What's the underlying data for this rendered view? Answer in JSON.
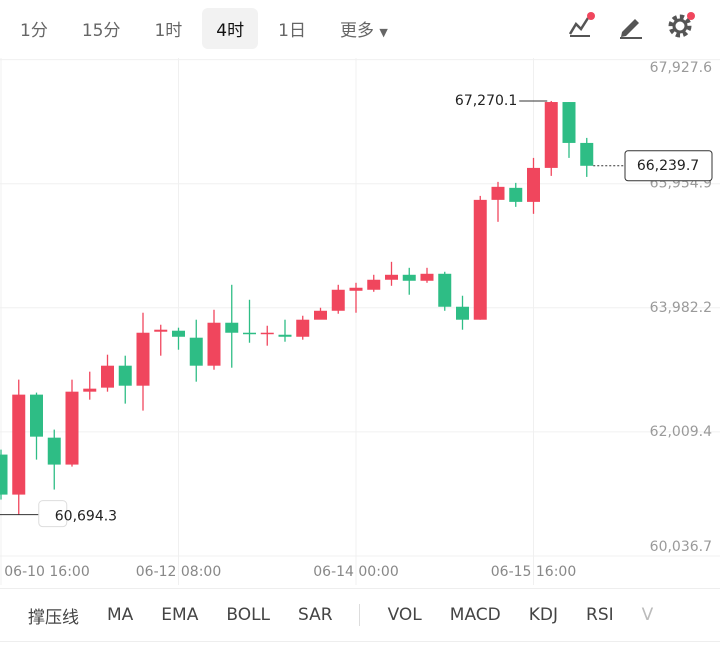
{
  "tabs": [
    "1分",
    "15分",
    "1时",
    "4时",
    "1日",
    "更多"
  ],
  "indicators": [
    "撑压线",
    "MA",
    "EMA",
    "BOLL",
    "SAR",
    "VOL",
    "MACD",
    "KDJ",
    "RSI",
    "V"
  ],
  "chart_data": {
    "type": "candlestick",
    "categories": [
      "06-10 16:00",
      null,
      null,
      null,
      null,
      null,
      null,
      null,
      null,
      null,
      "06-12 08:00",
      null,
      null,
      null,
      null,
      null,
      null,
      null,
      null,
      null,
      "06-14 00:00",
      null,
      null,
      null,
      null,
      null,
      null,
      null,
      null,
      null,
      "06-15 16:00",
      null,
      null,
      null
    ],
    "open": [
      61649,
      61013,
      62602,
      61918,
      61490,
      62649,
      62713,
      63062,
      62744,
      63602,
      63618,
      63507,
      63062,
      63745,
      63586,
      63570,
      63554,
      63522,
      63793,
      63935,
      64253,
      64269,
      64428,
      64507,
      64412,
      64523,
      63999,
      63793,
      65698,
      65889,
      65666,
      66206,
      67253,
      66603
    ],
    "high": [
      61728,
      62840,
      62634,
      62046,
      62840,
      62967,
      63237,
      63221,
      63904,
      63713,
      63666,
      63793,
      63951,
      64348,
      64110,
      63697,
      63793,
      63856,
      63983,
      64348,
      64380,
      64507,
      64713,
      64618,
      64618,
      64555,
      64174,
      65761,
      65984,
      65968,
      66365,
      67270.1,
      67253,
      66683
    ],
    "low": [
      60934,
      60694.3,
      61569,
      61093,
      61458,
      62522,
      62649,
      62459,
      62348,
      63221,
      63316,
      62808,
      62998,
      63030,
      63427,
      63380,
      63443,
      63475,
      63824,
      63888,
      63904,
      64237,
      64332,
      64190,
      64380,
      63935,
      63634,
      63793,
      65349,
      65587,
      65476,
      66079,
      66365,
      66063
    ],
    "close": [
      61013,
      62602,
      61934,
      61490,
      62649,
      62697,
      63062,
      62744,
      63586,
      63634,
      63522,
      63062,
      63745,
      63586,
      63570,
      63586,
      63522,
      63793,
      63935,
      64269,
      64301,
      64428,
      64507,
      64412,
      64523,
      63999,
      63793,
      65698,
      65905,
      65666,
      66206,
      67253,
      66603,
      66239.7
    ],
    "up_color": "#f0465d",
    "down_color": "#2ebd85",
    "ylim": [
      59576,
      67953
    ],
    "yticks": [
      {
        "value": 60036.7,
        "label": "60,036.7"
      },
      {
        "value": 62009.4,
        "label": "62,009.4"
      },
      {
        "value": 63982.2,
        "label": "63,982.2"
      },
      {
        "value": 65954.9,
        "label": "65,954.9"
      },
      {
        "value": 67927.6,
        "label": "67,927.6"
      }
    ],
    "grid": true,
    "annotations": [
      {
        "value": 67270.1,
        "label": "67,270.1"
      },
      {
        "value": 60694.3,
        "label": "60,694.3"
      }
    ],
    "last_price": {
      "value": 66239.7,
      "label": "66,239.7"
    }
  }
}
